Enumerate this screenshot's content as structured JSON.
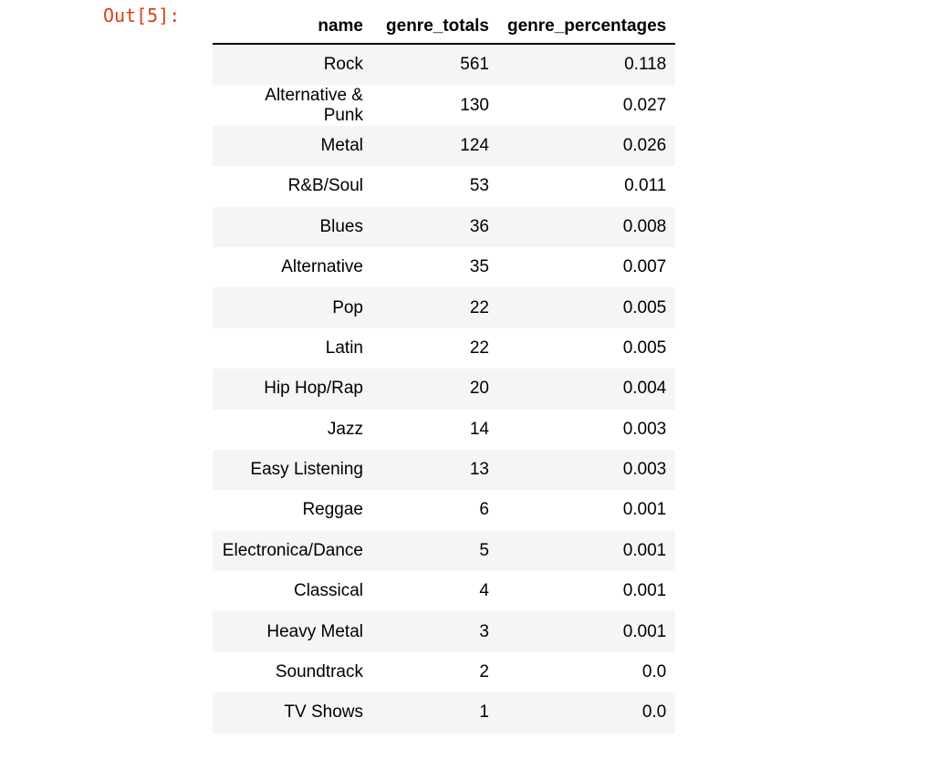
{
  "prompt_label": "Out[5]:",
  "columns": [
    "name",
    "genre_totals",
    "genre_percentages"
  ],
  "rows": [
    [
      "Rock",
      "561",
      "0.118"
    ],
    [
      "Alternative & Punk",
      "130",
      "0.027"
    ],
    [
      "Metal",
      "124",
      "0.026"
    ],
    [
      "R&B/Soul",
      "53",
      "0.011"
    ],
    [
      "Blues",
      "36",
      "0.008"
    ],
    [
      "Alternative",
      "35",
      "0.007"
    ],
    [
      "Pop",
      "22",
      "0.005"
    ],
    [
      "Latin",
      "22",
      "0.005"
    ],
    [
      "Hip Hop/Rap",
      "20",
      "0.004"
    ],
    [
      "Jazz",
      "14",
      "0.003"
    ],
    [
      "Easy Listening",
      "13",
      "0.003"
    ],
    [
      "Reggae",
      "6",
      "0.001"
    ],
    [
      "Electronica/Dance",
      "5",
      "0.001"
    ],
    [
      "Classical",
      "4",
      "0.001"
    ],
    [
      "Heavy Metal",
      "3",
      "0.001"
    ],
    [
      "Soundtrack",
      "2",
      "0.0"
    ],
    [
      "TV Shows",
      "1",
      "0.0"
    ]
  ],
  "colors": {
    "prompt": "#d84315",
    "row_stripe": "#f5f5f5",
    "header_rule": "#000000"
  }
}
